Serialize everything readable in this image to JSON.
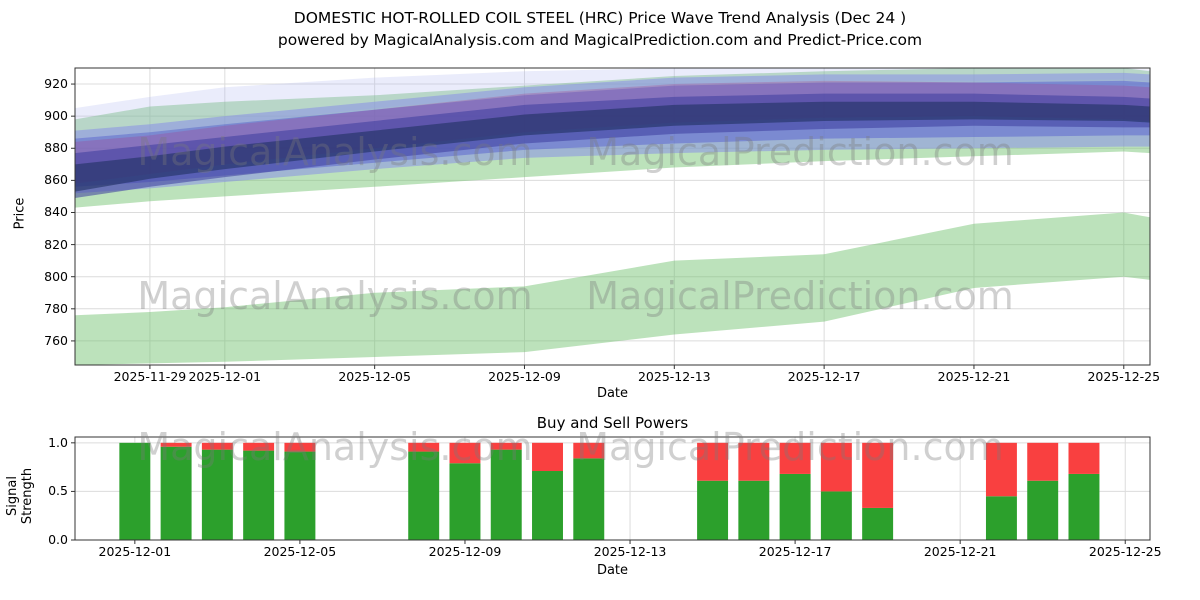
{
  "header": {
    "title_line1": "DOMESTIC HOT-ROLLED COIL STEEL (HRC) Price Wave Trend Analysis (Dec 24 )",
    "title_line2": "powered by MagicalAnalysis.com and MagicalPrediction.com and Predict-Price.com"
  },
  "watermarks": {
    "left": "MagicalAnalysis.com",
    "right": "MagicalPrediction.com",
    "color": "#7a7a7a",
    "opacity": 0.35
  },
  "chart_data": [
    {
      "id": "price-wave-trend",
      "type": "area",
      "title": "",
      "xlabel": "Date",
      "ylabel": "Price",
      "ylim": [
        745,
        930
      ],
      "xlim_days": [
        0,
        28.7
      ],
      "grid": true,
      "y_ticks": [
        {
          "v": 760,
          "label": "760"
        },
        {
          "v": 780,
          "label": "780"
        },
        {
          "v": 800,
          "label": "800"
        },
        {
          "v": 820,
          "label": "820"
        },
        {
          "v": 840,
          "label": "840"
        },
        {
          "v": 860,
          "label": "860"
        },
        {
          "v": 880,
          "label": "880"
        },
        {
          "v": 900,
          "label": "900"
        },
        {
          "v": 920,
          "label": "920"
        }
      ],
      "x_ticks": [
        {
          "day": 2,
          "label": "2025-11-29"
        },
        {
          "day": 4,
          "label": "2025-12-01"
        },
        {
          "day": 8,
          "label": "2025-12-05"
        },
        {
          "day": 12,
          "label": "2025-12-09"
        },
        {
          "day": 16,
          "label": "2025-12-13"
        },
        {
          "day": 20,
          "label": "2025-12-17"
        },
        {
          "day": 24,
          "label": "2025-12-21"
        },
        {
          "day": 28,
          "label": "2025-12-25"
        }
      ],
      "bands": [
        {
          "name": "green-lower-band",
          "color": "#6abf69",
          "opacity": 0.45,
          "days": [
            0,
            2,
            4,
            8,
            12,
            16,
            20,
            24,
            28,
            28.7
          ],
          "lower": [
            745,
            746,
            747,
            750,
            753,
            764,
            772,
            793,
            800,
            798
          ],
          "upper": [
            776,
            778,
            781,
            790,
            794,
            810,
            814,
            833,
            840,
            837
          ]
        },
        {
          "name": "green-upper-band",
          "color": "#6abf69",
          "opacity": 0.45,
          "days": [
            0,
            2,
            4,
            8,
            12,
            16,
            20,
            24,
            28,
            28.7
          ],
          "lower": [
            843,
            847,
            850,
            856,
            862,
            868,
            872,
            875,
            878,
            877
          ],
          "upper": [
            898,
            906,
            909,
            913,
            919,
            925,
            928,
            930,
            930,
            928
          ]
        },
        {
          "name": "pale-blue-halo-band",
          "color": "#aab4f0",
          "opacity": 0.25,
          "days": [
            0,
            2,
            4,
            8,
            12,
            16,
            20,
            24,
            28,
            28.7
          ],
          "lower": [
            885,
            890,
            895,
            905,
            913,
            919,
            922,
            922,
            923,
            922
          ],
          "upper": [
            905,
            912,
            918,
            924,
            928,
            930,
            930,
            930,
            930,
            929
          ]
        },
        {
          "name": "blue-outer-band",
          "color": "#8890e8",
          "opacity": 0.55,
          "days": [
            0,
            2,
            4,
            8,
            12,
            16,
            20,
            24,
            28,
            28.7
          ],
          "lower": [
            852,
            855,
            859,
            867,
            874,
            877,
            879,
            880,
            881,
            881
          ],
          "upper": [
            891,
            895,
            900,
            909,
            918,
            924,
            926,
            926,
            927,
            926
          ]
        },
        {
          "name": "blue-mid-band",
          "color": "#5560d0",
          "opacity": 0.5,
          "days": [
            0,
            2,
            4,
            8,
            12,
            16,
            20,
            24,
            28,
            28.7
          ],
          "lower": [
            856,
            859,
            863,
            871,
            879,
            883,
            886,
            887,
            888,
            888
          ],
          "upper": [
            886,
            890,
            895,
            904,
            913,
            919,
            921,
            921,
            922,
            921
          ]
        },
        {
          "name": "magenta-band",
          "color": "#a83a8a",
          "opacity": 0.28,
          "days": [
            0,
            2,
            4,
            8,
            12,
            16,
            20,
            24,
            28,
            28.7
          ],
          "lower": [
            858,
            864,
            870,
            880,
            890,
            896,
            899,
            900,
            898,
            897
          ],
          "upper": [
            884,
            888,
            894,
            904,
            914,
            920,
            922,
            921,
            919,
            918
          ]
        },
        {
          "name": "purple-dark-band",
          "color": "#3c3c9e",
          "opacity": 0.55,
          "days": [
            0,
            2,
            4,
            8,
            12,
            16,
            20,
            24,
            28,
            28.7
          ],
          "lower": [
            849,
            856,
            862,
            873,
            883,
            889,
            892,
            894,
            893,
            893
          ],
          "upper": [
            877,
            882,
            887,
            897,
            907,
            912,
            914,
            914,
            912,
            911
          ]
        },
        {
          "name": "navy-core-band",
          "color": "#203060",
          "opacity": 0.6,
          "days": [
            0,
            2,
            4,
            8,
            12,
            16,
            20,
            24,
            28,
            28.7
          ],
          "lower": [
            853,
            861,
            867,
            878,
            888,
            894,
            897,
            898,
            897,
            896
          ],
          "upper": [
            870,
            875,
            881,
            891,
            901,
            907,
            909,
            909,
            907,
            906
          ]
        }
      ]
    },
    {
      "id": "buy-sell-powers",
      "type": "bar",
      "title": "Buy and Sell Powers",
      "xlabel": "Date",
      "ylabel": "Signal Strength",
      "ylim": [
        0,
        1.06
      ],
      "xlim_days": [
        -1.45,
        24.6
      ],
      "grid": true,
      "bar_width_days": 0.75,
      "colors": {
        "buy": "#2ca02c",
        "sell": "#f94040"
      },
      "y_ticks": [
        {
          "v": 0,
          "label": "0.0"
        },
        {
          "v": 0.5,
          "label": "0.5"
        },
        {
          "v": 1,
          "label": "1.0"
        }
      ],
      "x_ticks": [
        {
          "day": 0,
          "label": "2025-12-01"
        },
        {
          "day": 4,
          "label": "2025-12-05"
        },
        {
          "day": 8,
          "label": "2025-12-09"
        },
        {
          "day": 12,
          "label": "2025-12-13"
        },
        {
          "day": 16,
          "label": "2025-12-17"
        },
        {
          "day": 20,
          "label": "2025-12-21"
        },
        {
          "day": 24,
          "label": "2025-12-25"
        }
      ],
      "bars": [
        {
          "date": "2025-12-01",
          "day": 0,
          "buy": 1.0,
          "sell": 0.0
        },
        {
          "date": "2025-12-02",
          "day": 1,
          "buy": 0.96,
          "sell": 0.04
        },
        {
          "date": "2025-12-03",
          "day": 2,
          "buy": 0.93,
          "sell": 0.07
        },
        {
          "date": "2025-12-04",
          "day": 3,
          "buy": 0.92,
          "sell": 0.08
        },
        {
          "date": "2025-12-05",
          "day": 4,
          "buy": 0.91,
          "sell": 0.09
        },
        {
          "date": "2025-12-08",
          "day": 7,
          "buy": 0.91,
          "sell": 0.09
        },
        {
          "date": "2025-12-09",
          "day": 8,
          "buy": 0.79,
          "sell": 0.21
        },
        {
          "date": "2025-12-10",
          "day": 9,
          "buy": 0.93,
          "sell": 0.07
        },
        {
          "date": "2025-12-11",
          "day": 10,
          "buy": 0.71,
          "sell": 0.29
        },
        {
          "date": "2025-12-12",
          "day": 11,
          "buy": 0.84,
          "sell": 0.16
        },
        {
          "date": "2025-12-15",
          "day": 14,
          "buy": 0.61,
          "sell": 0.39
        },
        {
          "date": "2025-12-16",
          "day": 15,
          "buy": 0.61,
          "sell": 0.39
        },
        {
          "date": "2025-12-17",
          "day": 16,
          "buy": 0.68,
          "sell": 0.32
        },
        {
          "date": "2025-12-18",
          "day": 17,
          "buy": 0.5,
          "sell": 0.5
        },
        {
          "date": "2025-12-19",
          "day": 18,
          "buy": 0.33,
          "sell": 0.67
        },
        {
          "date": "2025-12-22",
          "day": 21,
          "buy": 0.45,
          "sell": 0.55
        },
        {
          "date": "2025-12-23",
          "day": 22,
          "buy": 0.61,
          "sell": 0.39
        },
        {
          "date": "2025-12-24",
          "day": 23,
          "buy": 0.68,
          "sell": 0.32
        }
      ]
    }
  ]
}
